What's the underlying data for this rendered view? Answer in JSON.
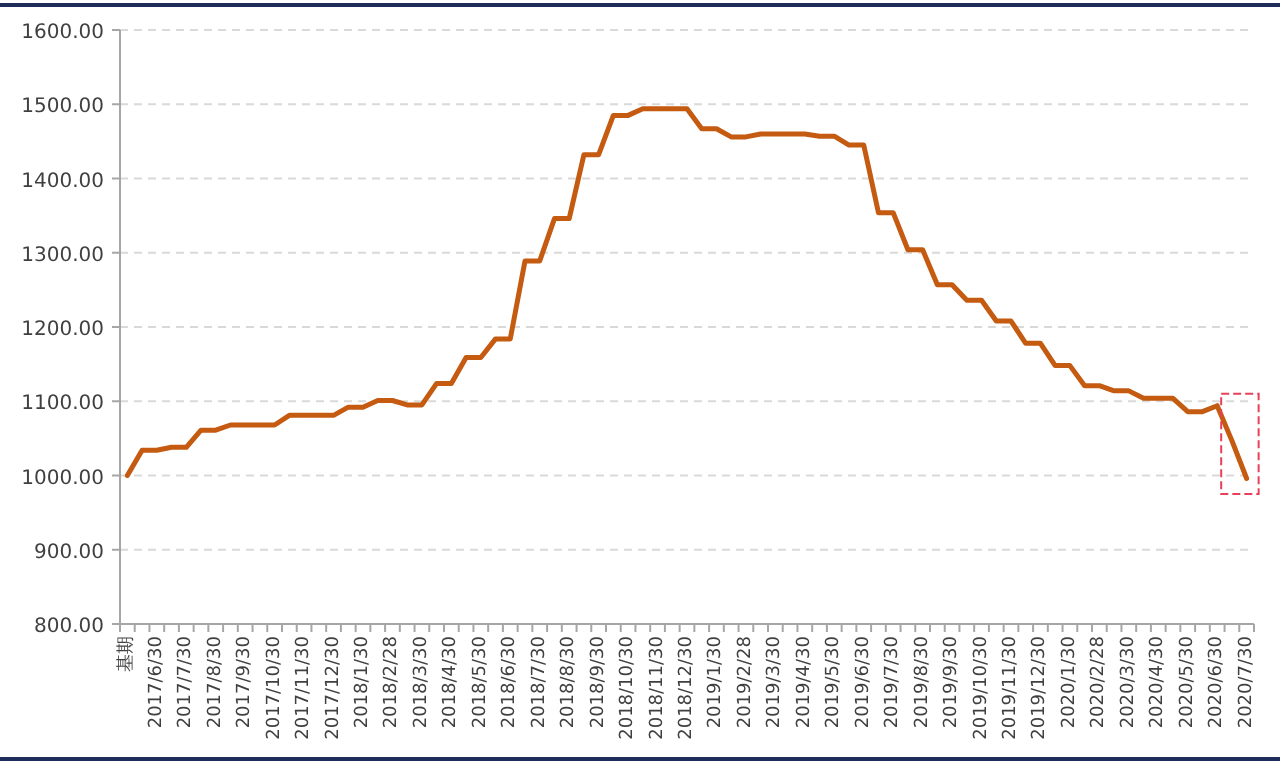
{
  "chart_data": {
    "type": "line",
    "categories": [
      "基期",
      null,
      "2017/6/30",
      null,
      "2017/7/30",
      null,
      "2017/8/30",
      null,
      "2017/9/30",
      null,
      "2017/10/30",
      null,
      "2017/11/30",
      null,
      "2017/12/30",
      null,
      "2018/1/30",
      null,
      "2018/2/28",
      null,
      "2018/3/30",
      null,
      "2018/4/30",
      null,
      "2018/5/30",
      null,
      "2018/6/30",
      null,
      "2018/7/30",
      null,
      "2018/8/30",
      null,
      "2018/9/30",
      null,
      "2018/10/30",
      null,
      "2018/11/30",
      null,
      "2018/12/30",
      null,
      "2019/1/30",
      null,
      "2019/2/28",
      null,
      "2019/3/30",
      null,
      "2019/4/30",
      null,
      "2019/5/30",
      null,
      "2019/6/30",
      null,
      "2019/7/30",
      null,
      "2019/8/30",
      null,
      "2019/9/30",
      null,
      "2019/10/30",
      null,
      "2019/11/30",
      null,
      "2019/12/30",
      null,
      "2020/1/30",
      null,
      "2020/2/28",
      null,
      "2020/3/30",
      null,
      "2020/4/30",
      null,
      "2020/5/30",
      null,
      "2020/6/30",
      null,
      "2020/7/30"
    ],
    "values": [
      1000,
      1034,
      1034,
      1038,
      1038,
      1061,
      1061,
      1068,
      1068,
      1068,
      1068,
      1081,
      1081,
      1081,
      1081,
      1092,
      1092,
      1101,
      1101,
      1095,
      1095,
      1124,
      1124,
      1159,
      1159,
      1184,
      1184,
      1289,
      1289,
      1346,
      1346,
      1432,
      1432,
      1485,
      1485,
      1494,
      1494,
      1494,
      1494,
      1467,
      1467,
      1456,
      1456,
      1460,
      1460,
      1460,
      1460,
      1457,
      1457,
      1445,
      1445,
      1354,
      1354,
      1304,
      1304,
      1257,
      1257,
      1236,
      1236,
      1208,
      1208,
      1178,
      1178,
      1148,
      1148,
      1121,
      1121,
      1114,
      1114,
      1104,
      1104,
      1104,
      1086,
      1086,
      1094,
      1047,
      996
    ],
    "color": "#c55a11",
    "ylim": [
      800,
      1600
    ],
    "yticks": [
      {
        "value": 800,
        "label": "800.00"
      },
      {
        "value": 900,
        "label": "900.00"
      },
      {
        "value": 1000,
        "label": "1000.00"
      },
      {
        "value": 1100,
        "label": "1100.00"
      },
      {
        "value": 1200,
        "label": "1200.00"
      },
      {
        "value": 1300,
        "label": "1300.00"
      },
      {
        "value": 1400,
        "label": "1400.00"
      },
      {
        "value": 1500,
        "label": "1500.00"
      },
      {
        "value": 1600,
        "label": "1600.00"
      }
    ],
    "grid": "y"
  }
}
